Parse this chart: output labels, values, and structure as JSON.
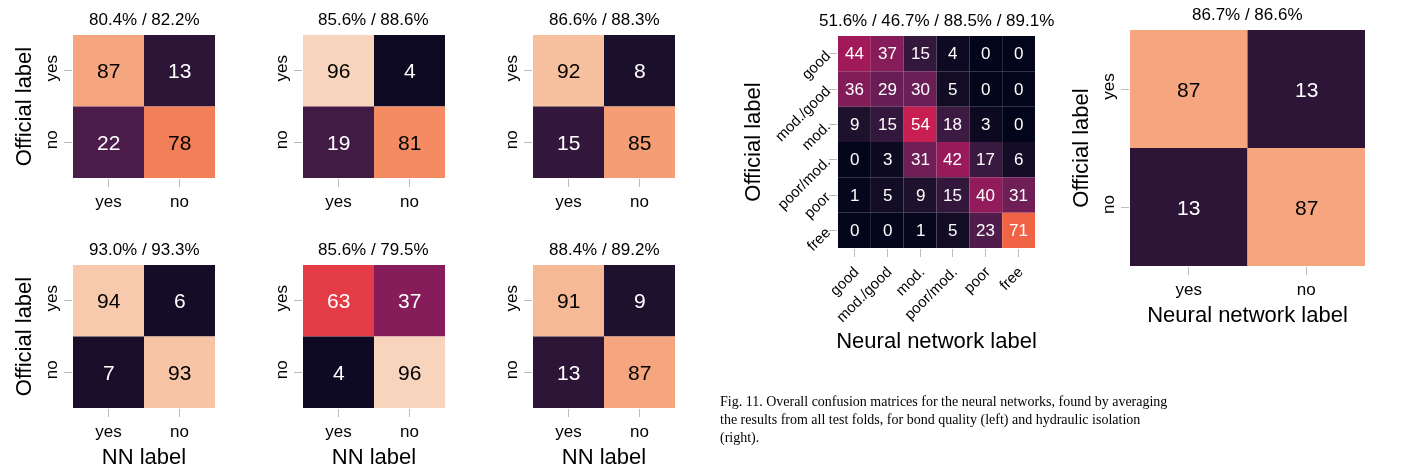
{
  "chart_data": [
    {
      "type": "heatmap",
      "title": "80.4% / 82.2%",
      "ylabel": "Official label",
      "categories": [
        "yes",
        "no"
      ],
      "y_categories": [
        "yes",
        "no"
      ],
      "cells": [
        [
          87,
          13
        ],
        [
          22,
          78
        ]
      ],
      "data_labels": true
    },
    {
      "type": "heatmap",
      "title": "85.6% / 88.6%",
      "categories": [
        "yes",
        "no"
      ],
      "y_categories": [
        "yes",
        "no"
      ],
      "cells": [
        [
          96,
          4
        ],
        [
          19,
          81
        ]
      ],
      "data_labels": true
    },
    {
      "type": "heatmap",
      "title": "86.6% / 88.3%",
      "categories": [
        "yes",
        "no"
      ],
      "y_categories": [
        "yes",
        "no"
      ],
      "cells": [
        [
          92,
          8
        ],
        [
          15,
          85
        ]
      ],
      "data_labels": true
    },
    {
      "type": "heatmap",
      "title": "93.0% / 93.3%",
      "xlabel": "NN label",
      "ylabel": "Official label",
      "categories": [
        "yes",
        "no"
      ],
      "y_categories": [
        "yes",
        "no"
      ],
      "cells": [
        [
          94,
          6
        ],
        [
          7,
          93
        ]
      ],
      "data_labels": true
    },
    {
      "type": "heatmap",
      "title": "85.6% / 79.5%",
      "xlabel": "NN label",
      "categories": [
        "yes",
        "no"
      ],
      "y_categories": [
        "yes",
        "no"
      ],
      "cells": [
        [
          63,
          37
        ],
        [
          4,
          96
        ]
      ],
      "data_labels": true
    },
    {
      "type": "heatmap",
      "title": "88.4% / 89.2%",
      "xlabel": "NN label",
      "categories": [
        "yes",
        "no"
      ],
      "y_categories": [
        "yes",
        "no"
      ],
      "cells": [
        [
          91,
          9
        ],
        [
          13,
          87
        ]
      ],
      "data_labels": true
    },
    {
      "type": "heatmap",
      "title": "51.6% / 46.7% / 88.5% / 89.1%",
      "xlabel": "Neural network label",
      "ylabel": "Official label",
      "categories": [
        "good",
        "mod./good",
        "mod.",
        "poor/mod.",
        "poor",
        "free"
      ],
      "y_categories": [
        "good",
        "mod./good",
        "mod.",
        "poor/mod.",
        "poor",
        "free"
      ],
      "cells": [
        [
          44,
          37,
          15,
          4,
          0,
          0
        ],
        [
          36,
          29,
          30,
          5,
          0,
          0
        ],
        [
          9,
          15,
          54,
          18,
          3,
          0
        ],
        [
          0,
          3,
          31,
          42,
          17,
          6
        ],
        [
          1,
          5,
          9,
          15,
          40,
          31
        ],
        [
          0,
          0,
          1,
          5,
          23,
          71
        ]
      ],
      "data_labels": true
    },
    {
      "type": "heatmap",
      "title": "86.7% / 86.6%",
      "xlabel": "Neural network label",
      "ylabel": "Official label",
      "categories": [
        "yes",
        "no"
      ],
      "y_categories": [
        "yes",
        "no"
      ],
      "cells": [
        [
          87,
          13
        ],
        [
          13,
          87
        ]
      ],
      "data_labels": true,
      "annotations": [
        "Fig. 11. Overall confusion matrices for the neural networks, found by averaging the results from all test folds, for bond quality (left) and hydraulic isolation (right)."
      ]
    }
  ]
}
